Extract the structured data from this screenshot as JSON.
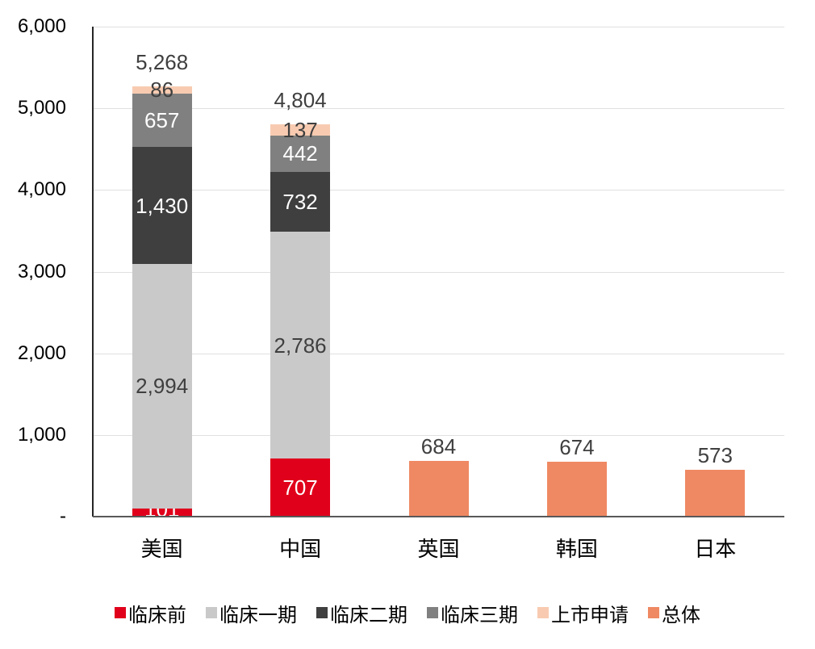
{
  "chart_data": {
    "type": "bar",
    "stacked": true,
    "grid": true,
    "legend_position": "bottom",
    "ylim": [
      0,
      6000
    ],
    "yticks": [
      {
        "value": 0,
        "label": "-"
      },
      {
        "value": 1000,
        "label": "1,000"
      },
      {
        "value": 2000,
        "label": "2,000"
      },
      {
        "value": 3000,
        "label": "3,000"
      },
      {
        "value": 4000,
        "label": "4,000"
      },
      {
        "value": 5000,
        "label": "5,000"
      },
      {
        "value": 6000,
        "label": "6,000"
      }
    ],
    "categories": [
      "美国",
      "中国",
      "英国",
      "韩国",
      "日本"
    ],
    "series": [
      {
        "name": "临床前",
        "color": "#e0001b",
        "label_color": "#ffffff"
      },
      {
        "name": "临床一期",
        "color": "#c9c9c9",
        "label_color": "#3f3f3f"
      },
      {
        "name": "临床二期",
        "color": "#3f3f3f",
        "label_color": "#ffffff"
      },
      {
        "name": "临床三期",
        "color": "#808080",
        "label_color": "#ffffff"
      },
      {
        "name": "上市申请",
        "color": "#f8cbb1",
        "label_color": "#3f3f3f"
      },
      {
        "name": "总体",
        "color": "#ef8963",
        "label_color": "#3f3f3f"
      }
    ],
    "bars": [
      {
        "category": "美国",
        "total": 5268,
        "total_label": "5,268",
        "segments": [
          {
            "series": "临床前",
            "value": 101,
            "label": "101"
          },
          {
            "series": "临床一期",
            "value": 2994,
            "label": "2,994"
          },
          {
            "series": "临床二期",
            "value": 1430,
            "label": "1,430"
          },
          {
            "series": "临床三期",
            "value": 657,
            "label": "657"
          },
          {
            "series": "上市申请",
            "value": 86,
            "label": "86"
          }
        ]
      },
      {
        "category": "中国",
        "total": 4804,
        "total_label": "4,804",
        "segments": [
          {
            "series": "临床前",
            "value": 707,
            "label": "707"
          },
          {
            "series": "临床一期",
            "value": 2786,
            "label": "2,786"
          },
          {
            "series": "临床二期",
            "value": 732,
            "label": "732"
          },
          {
            "series": "临床三期",
            "value": 442,
            "label": "442"
          },
          {
            "series": "上市申请",
            "value": 137,
            "label": "137"
          }
        ]
      },
      {
        "category": "英国",
        "total": 684,
        "total_label": "684",
        "segments": [
          {
            "series": "总体",
            "value": 684,
            "label": ""
          }
        ]
      },
      {
        "category": "韩国",
        "total": 674,
        "total_label": "674",
        "segments": [
          {
            "series": "总体",
            "value": 674,
            "label": ""
          }
        ]
      },
      {
        "category": "日本",
        "total": 573,
        "total_label": "573",
        "segments": [
          {
            "series": "总体",
            "value": 573,
            "label": ""
          }
        ]
      }
    ]
  },
  "colors": {
    "grid_line": "#e0e0e0",
    "axis_line": "#262626",
    "baseline": "#595959",
    "tick_label": "#000000",
    "data_label_dark": "#3f3f3f",
    "background": "#ffffff"
  }
}
